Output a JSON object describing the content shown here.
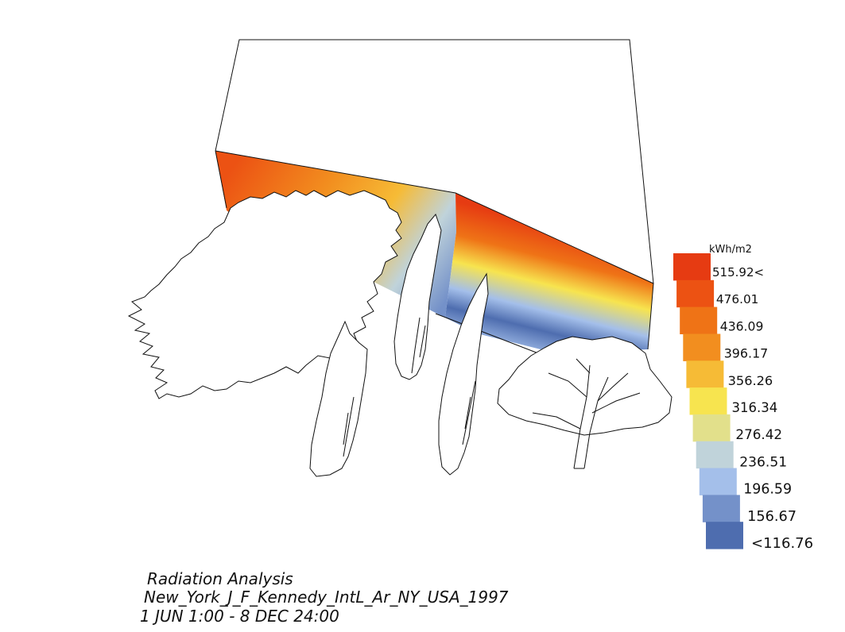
{
  "legend": {
    "unit": "kWh/m2",
    "labels": [
      "515.92<",
      "476.01",
      "436.09",
      "396.17",
      "356.26",
      "316.34",
      "276.42",
      "236.51",
      "196.59",
      "156.67",
      "<116.76"
    ],
    "colors": [
      "#e63b12",
      "#ec5213",
      "#ef7316",
      "#f28e1f",
      "#f6bb36",
      "#f7e44f",
      "#e2e08b",
      "#c0d3da",
      "#a4bfea",
      "#7491c9",
      "#4e6daf"
    ]
  },
  "caption": {
    "title": "Radiation Analysis",
    "location": "New_York_J_F_Kennedy_IntL_Ar_NY_USA_1997",
    "period": "1 JUN 1:00 - 8 DEC 24:00"
  },
  "chart_data": {
    "type": "heatmap",
    "unit": "kWh/m2",
    "legend_steps": [
      {
        "label": "515.92<",
        "color": "#e63b12"
      },
      {
        "label": "476.01",
        "color": "#ec5213"
      },
      {
        "label": "436.09",
        "color": "#ef7316"
      },
      {
        "label": "396.17",
        "color": "#f28e1f"
      },
      {
        "label": "356.26",
        "color": "#f6bb36"
      },
      {
        "label": "316.34",
        "color": "#f7e44f"
      },
      {
        "label": "276.42",
        "color": "#e2e08b"
      },
      {
        "label": "236.51",
        "color": "#c0d3da"
      },
      {
        "label": "196.59",
        "color": "#a4bfea"
      },
      {
        "label": "156.67",
        "color": "#7491c9"
      },
      {
        "label": "<116.76",
        "color": "#4e6daf"
      }
    ],
    "legend_placement": "right"
  }
}
